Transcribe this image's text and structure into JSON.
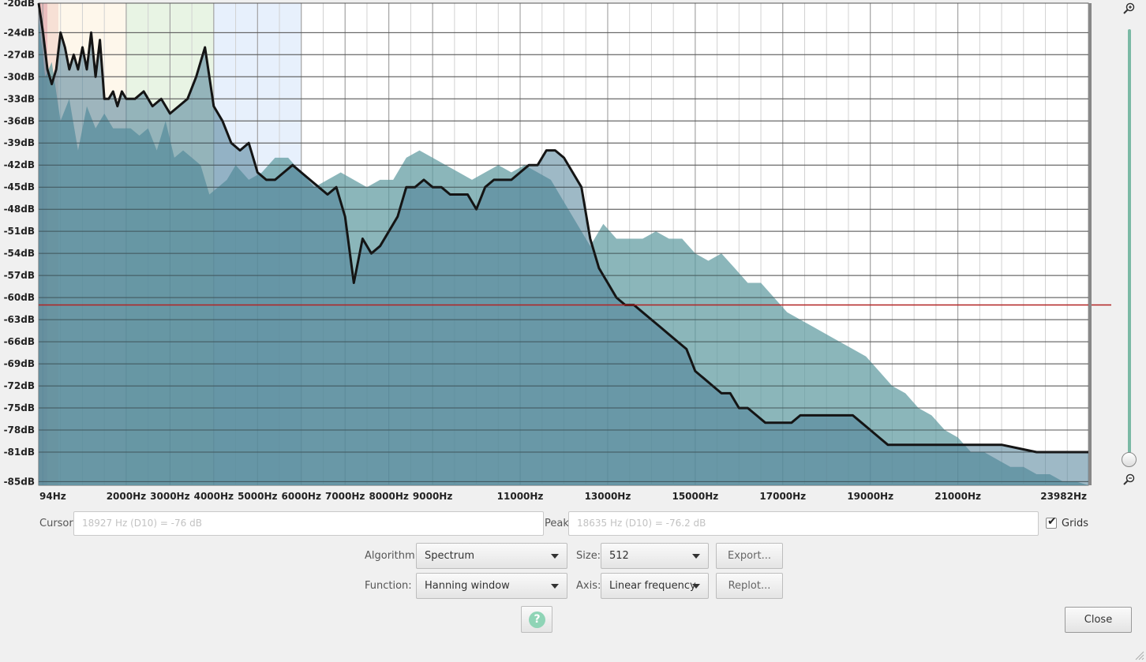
{
  "chart_data": {
    "type": "area",
    "xlabel": "",
    "ylabel": "",
    "x_tick_labels": [
      "94Hz",
      "2000Hz",
      "3000Hz",
      "4000Hz",
      "5000Hz",
      "6000Hz",
      "7000Hz",
      "8000Hz",
      "9000Hz",
      "11000Hz",
      "13000Hz",
      "15000Hz",
      "17000Hz",
      "19000Hz",
      "21000Hz",
      "23982Hz"
    ],
    "x_tick_values": [
      94,
      2000,
      3000,
      4000,
      5000,
      6000,
      7000,
      8000,
      9000,
      11000,
      13000,
      15000,
      17000,
      19000,
      21000,
      23982
    ],
    "xlim": [
      0,
      23982
    ],
    "y_tick_labels": [
      "-20dB",
      "-24dB",
      "-27dB",
      "-30dB",
      "-33dB",
      "-36dB",
      "-39dB",
      "-42dB",
      "-45dB",
      "-48dB",
      "-51dB",
      "-54dB",
      "-57dB",
      "-60dB",
      "-63dB",
      "-66dB",
      "-69dB",
      "-72dB",
      "-75dB",
      "-78dB",
      "-81dB",
      "-85dB"
    ],
    "ylim": [
      -85.5,
      -20
    ],
    "grid": true,
    "threshold_line_db": -61,
    "series": [
      {
        "color": "#5e9aa0",
        "style": "filled",
        "x": [
          0,
          150,
          300,
          500,
          700,
          900,
          1100,
          1300,
          1500,
          1700,
          1900,
          2100,
          2300,
          2500,
          2700,
          2900,
          3100,
          3300,
          3500,
          3700,
          3900,
          4100,
          4300,
          4500,
          4800,
          5100,
          5400,
          5700,
          6000,
          6300,
          6600,
          6900,
          7200,
          7500,
          7800,
          8100,
          8400,
          8700,
          9000,
          9300,
          9600,
          9900,
          10200,
          10500,
          10800,
          11100,
          11400,
          11700,
          12000,
          12300,
          12600,
          12900,
          13200,
          13500,
          13800,
          14100,
          14400,
          14700,
          15000,
          15300,
          15600,
          15900,
          16200,
          16500,
          16800,
          17100,
          17400,
          17700,
          18000,
          18300,
          18600,
          18900,
          19200,
          19500,
          19800,
          20100,
          20400,
          20700,
          21000,
          21300,
          21600,
          21900,
          22200,
          22500,
          22800,
          23100,
          23400,
          23700,
          23982
        ],
        "y": [
          -22,
          -30,
          -28,
          -36,
          -33,
          -40,
          -34,
          -37,
          -35,
          -37,
          -37,
          -37,
          -38,
          -37,
          -40,
          -36,
          -41,
          -40,
          -41,
          -42,
          -46,
          -45,
          -44,
          -42,
          -44,
          -43,
          -41,
          -41,
          -43,
          -45,
          -44,
          -43,
          -44,
          -45,
          -44,
          -44,
          -41,
          -40,
          -41,
          -42,
          -43,
          -44,
          -43,
          -42,
          -43,
          -42,
          -43,
          -44,
          -47,
          -50,
          -53,
          -50,
          -52,
          -52,
          -52,
          -51,
          -52,
          -52,
          -54,
          -55,
          -54,
          -56,
          -58,
          -58,
          -60,
          -62,
          -63,
          -64,
          -65,
          -66,
          -67,
          -68,
          -70,
          -72,
          -73,
          -75,
          -76,
          -78,
          -79,
          -81,
          -81,
          -82,
          -83,
          -83,
          -84,
          -84,
          -85,
          -85,
          -85.5
        ]
      },
      {
        "color": "#141414",
        "style": "thick-line",
        "x": [
          0,
          100,
          200,
          300,
          400,
          500,
          600,
          700,
          800,
          900,
          1000,
          1100,
          1200,
          1300,
          1400,
          1500,
          1600,
          1700,
          1800,
          1900,
          2000,
          2200,
          2400,
          2600,
          2800,
          3000,
          3200,
          3400,
          3600,
          3800,
          4000,
          4200,
          4400,
          4600,
          4800,
          5000,
          5200,
          5400,
          5600,
          5800,
          6000,
          6200,
          6400,
          6600,
          6800,
          7000,
          7200,
          7400,
          7600,
          7800,
          8000,
          8200,
          8400,
          8600,
          8800,
          9000,
          9200,
          9400,
          9600,
          9800,
          10000,
          10200,
          10400,
          10600,
          10800,
          11000,
          11200,
          11400,
          11600,
          11800,
          12000,
          12200,
          12400,
          12600,
          12800,
          13000,
          13200,
          13400,
          13600,
          13800,
          14000,
          14200,
          14400,
          14600,
          14800,
          15000,
          15200,
          15400,
          15600,
          15800,
          16000,
          16200,
          16400,
          16600,
          16800,
          17000,
          17200,
          17400,
          17600,
          17800,
          18000,
          18200,
          18400,
          18600,
          18800,
          19000,
          19200,
          19400,
          19600,
          19800,
          20000,
          20400,
          20800,
          21200,
          21600,
          22000,
          22400,
          22800,
          23200,
          23600,
          23982
        ],
        "y": [
          -20,
          -24,
          -29,
          -31,
          -29,
          -24,
          -26,
          -29,
          -27,
          -29,
          -26,
          -29,
          -24,
          -30,
          -25,
          -33,
          -33,
          -32,
          -34,
          -32,
          -33,
          -33,
          -32,
          -34,
          -33,
          -35,
          -34,
          -33,
          -30,
          -26,
          -34,
          -36,
          -39,
          -40,
          -39,
          -43,
          -44,
          -44,
          -43,
          -42,
          -43,
          -44,
          -45,
          -46,
          -45,
          -49,
          -58,
          -52,
          -54,
          -53,
          -51,
          -49,
          -45,
          -45,
          -44,
          -45,
          -45,
          -46,
          -46,
          -46,
          -48,
          -45,
          -44,
          -44,
          -44,
          -43,
          -42,
          -42,
          -40,
          -40,
          -41,
          -43,
          -45,
          -52,
          -56,
          -58,
          -60,
          -61,
          -61,
          -62,
          -63,
          -64,
          -65,
          -66,
          -67,
          -70,
          -71,
          -72,
          -73,
          -73,
          -75,
          -75,
          -76,
          -77,
          -77,
          -77,
          -77,
          -76,
          -76,
          -76,
          -76,
          -76,
          -76,
          -76,
          -77,
          -78,
          -79,
          -80,
          -80,
          -80,
          -80,
          -80,
          -80,
          -80,
          -80,
          -80,
          -80.5,
          -81,
          -81,
          -81,
          -81
        ]
      }
    ],
    "bands": [
      {
        "x0": 0,
        "x1": 200,
        "color": "#e3a3a3"
      },
      {
        "x0": 200,
        "x1": 450,
        "color": "#f3d3c3"
      },
      {
        "x0": 450,
        "x1": 2000,
        "color": "#fdf3e3"
      },
      {
        "x0": 2000,
        "x1": 4000,
        "color": "#def0d8"
      },
      {
        "x0": 4000,
        "x1": 6000,
        "color": "#dde9fb"
      }
    ]
  },
  "cursor": {
    "label": "Cursor:",
    "value": "18927 Hz (D10) = -76 dB"
  },
  "peak": {
    "label": "Peak:",
    "value": "18635 Hz (D10) = -76.2 dB"
  },
  "grids": {
    "label": "Grids",
    "checked": true
  },
  "algorithm": {
    "label": "Algorithm:",
    "value": "Spectrum"
  },
  "size": {
    "label": "Size:",
    "value": "512"
  },
  "function": {
    "label": "Function:",
    "value": "Hanning window"
  },
  "axis": {
    "label": "Axis:",
    "value": "Linear frequency"
  },
  "buttons": {
    "export": "Export...",
    "replot": "Replot...",
    "close": "Close",
    "help": "?"
  },
  "icons": {
    "zoom_in": "zoom-in-icon",
    "zoom_out": "zoom-out-icon",
    "help": "help-icon"
  }
}
